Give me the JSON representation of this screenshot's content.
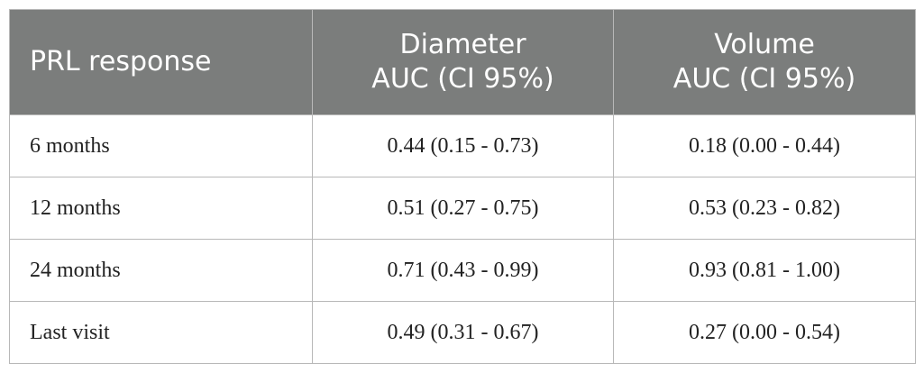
{
  "table": {
    "header": [
      [
        "PRL response"
      ],
      [
        "Diameter",
        "AUC (CI 95%)"
      ],
      [
        "Volume",
        "AUC (CI 95%)"
      ]
    ],
    "rows": [
      [
        "6 months",
        "0.44 (0.15 - 0.73)",
        "0.18 (0.00 - 0.44)"
      ],
      [
        "12 months",
        "0.51 (0.27 - 0.75)",
        "0.53 (0.23 - 0.82)"
      ],
      [
        "24 months",
        "0.71 (0.43 - 0.99)",
        "0.93 (0.81 - 1.00)"
      ],
      [
        "Last visit",
        "0.49 (0.31 - 0.67)",
        "0.27 (0.00 - 0.54)"
      ]
    ]
  }
}
